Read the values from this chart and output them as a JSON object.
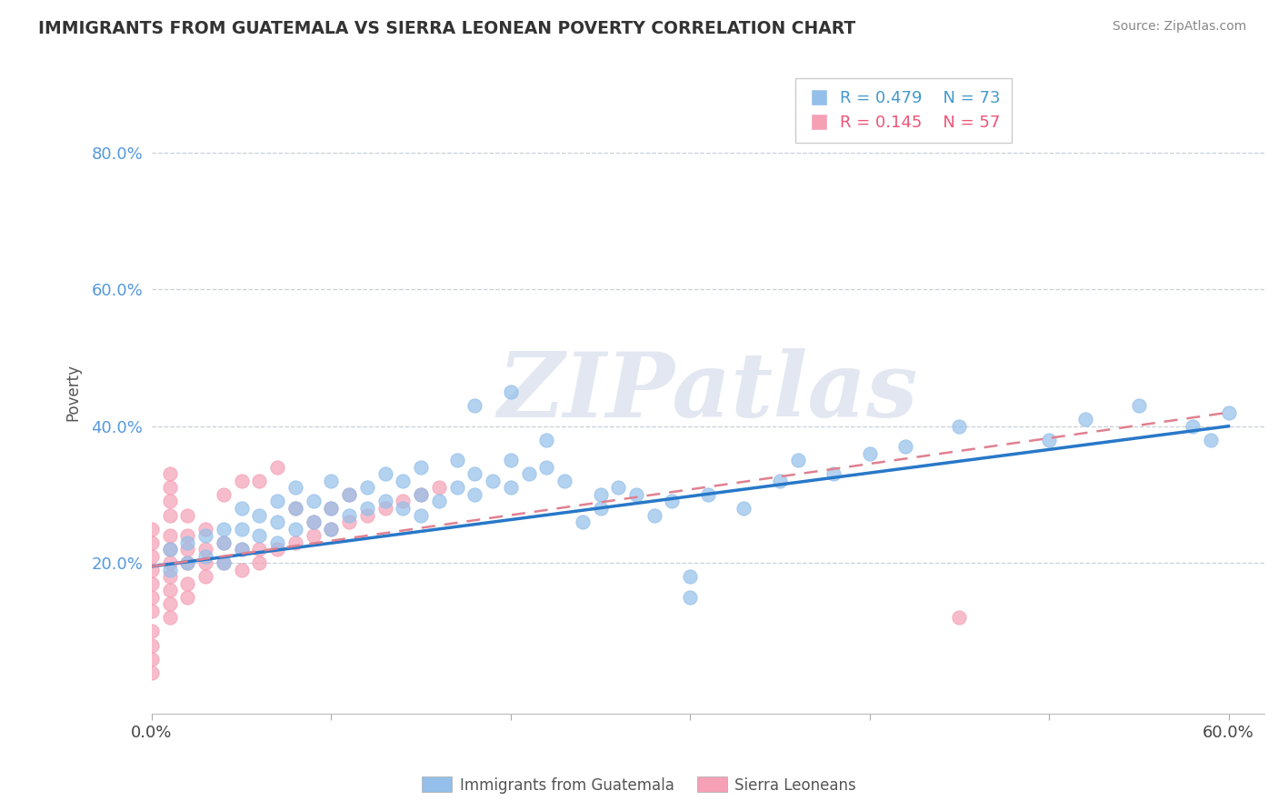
{
  "title": "IMMIGRANTS FROM GUATEMALA VS SIERRA LEONEAN POVERTY CORRELATION CHART",
  "source": "Source: ZipAtlas.com",
  "ylabel": "Poverty",
  "xlim": [
    0.0,
    0.62
  ],
  "ylim": [
    -0.02,
    0.92
  ],
  "y_tick_values": [
    0.2,
    0.4,
    0.6,
    0.8
  ],
  "y_tick_labels": [
    "20.0%",
    "40.0%",
    "60.0%",
    "80.0%"
  ],
  "x_tick_values": [
    0.0,
    0.1,
    0.2,
    0.3,
    0.4,
    0.5,
    0.6
  ],
  "x_tick_labels": [
    "0.0%",
    "",
    "",
    "",
    "",
    "",
    "60.0%"
  ],
  "blue_color": "#93BFEA",
  "pink_color": "#F5A0B5",
  "trend_blue_color": "#2878C8",
  "trend_pink_color": "#E08090",
  "trend_pink_dash": [
    6,
    4
  ],
  "watermark": "ZIPatlas",
  "watermark_color": "#D0D8E8",
  "blue_scatter_x": [
    0.01,
    0.01,
    0.02,
    0.02,
    0.03,
    0.03,
    0.04,
    0.04,
    0.04,
    0.05,
    0.05,
    0.05,
    0.06,
    0.06,
    0.07,
    0.07,
    0.07,
    0.08,
    0.08,
    0.08,
    0.09,
    0.09,
    0.1,
    0.1,
    0.1,
    0.11,
    0.11,
    0.12,
    0.12,
    0.13,
    0.13,
    0.14,
    0.14,
    0.15,
    0.15,
    0.15,
    0.16,
    0.17,
    0.17,
    0.18,
    0.18,
    0.19,
    0.2,
    0.2,
    0.21,
    0.22,
    0.22,
    0.23,
    0.24,
    0.25,
    0.26,
    0.27,
    0.28,
    0.29,
    0.3,
    0.3,
    0.31,
    0.33,
    0.35,
    0.36,
    0.38,
    0.4,
    0.42,
    0.45,
    0.5,
    0.52,
    0.55,
    0.58,
    0.59,
    0.6,
    0.2,
    0.18,
    0.25
  ],
  "blue_scatter_y": [
    0.19,
    0.22,
    0.2,
    0.23,
    0.21,
    0.24,
    0.2,
    0.23,
    0.25,
    0.22,
    0.25,
    0.28,
    0.24,
    0.27,
    0.23,
    0.26,
    0.29,
    0.25,
    0.28,
    0.31,
    0.26,
    0.29,
    0.25,
    0.28,
    0.32,
    0.27,
    0.3,
    0.28,
    0.31,
    0.29,
    0.33,
    0.28,
    0.32,
    0.27,
    0.3,
    0.34,
    0.29,
    0.31,
    0.35,
    0.3,
    0.33,
    0.32,
    0.31,
    0.35,
    0.33,
    0.34,
    0.38,
    0.32,
    0.26,
    0.28,
    0.31,
    0.3,
    0.27,
    0.29,
    0.15,
    0.18,
    0.3,
    0.28,
    0.32,
    0.35,
    0.33,
    0.36,
    0.37,
    0.4,
    0.38,
    0.41,
    0.43,
    0.4,
    0.38,
    0.42,
    0.45,
    0.43,
    0.3
  ],
  "pink_scatter_x": [
    0.0,
    0.0,
    0.0,
    0.0,
    0.0,
    0.0,
    0.0,
    0.0,
    0.0,
    0.0,
    0.0,
    0.01,
    0.01,
    0.01,
    0.01,
    0.01,
    0.01,
    0.01,
    0.01,
    0.01,
    0.01,
    0.01,
    0.02,
    0.02,
    0.02,
    0.02,
    0.02,
    0.02,
    0.03,
    0.03,
    0.03,
    0.03,
    0.04,
    0.04,
    0.05,
    0.05,
    0.06,
    0.06,
    0.07,
    0.08,
    0.09,
    0.1,
    0.11,
    0.12,
    0.13,
    0.14,
    0.15,
    0.16,
    0.04,
    0.05,
    0.06,
    0.07,
    0.08,
    0.09,
    0.1,
    0.45,
    0.11
  ],
  "pink_scatter_y": [
    0.04,
    0.06,
    0.08,
    0.1,
    0.13,
    0.15,
    0.17,
    0.19,
    0.21,
    0.23,
    0.25,
    0.12,
    0.14,
    0.16,
    0.18,
    0.2,
    0.22,
    0.24,
    0.27,
    0.29,
    0.31,
    0.33,
    0.15,
    0.17,
    0.2,
    0.22,
    0.24,
    0.27,
    0.18,
    0.2,
    0.22,
    0.25,
    0.2,
    0.23,
    0.19,
    0.22,
    0.2,
    0.22,
    0.22,
    0.23,
    0.24,
    0.25,
    0.26,
    0.27,
    0.28,
    0.29,
    0.3,
    0.31,
    0.3,
    0.32,
    0.32,
    0.34,
    0.28,
    0.26,
    0.28,
    0.12,
    0.3
  ],
  "blue_trend_x0": 0.0,
  "blue_trend_y0": 0.195,
  "blue_trend_x1": 0.6,
  "blue_trend_y1": 0.4,
  "pink_trend_x0": 0.0,
  "pink_trend_y0": 0.195,
  "pink_trend_x1": 0.6,
  "pink_trend_y1": 0.42
}
